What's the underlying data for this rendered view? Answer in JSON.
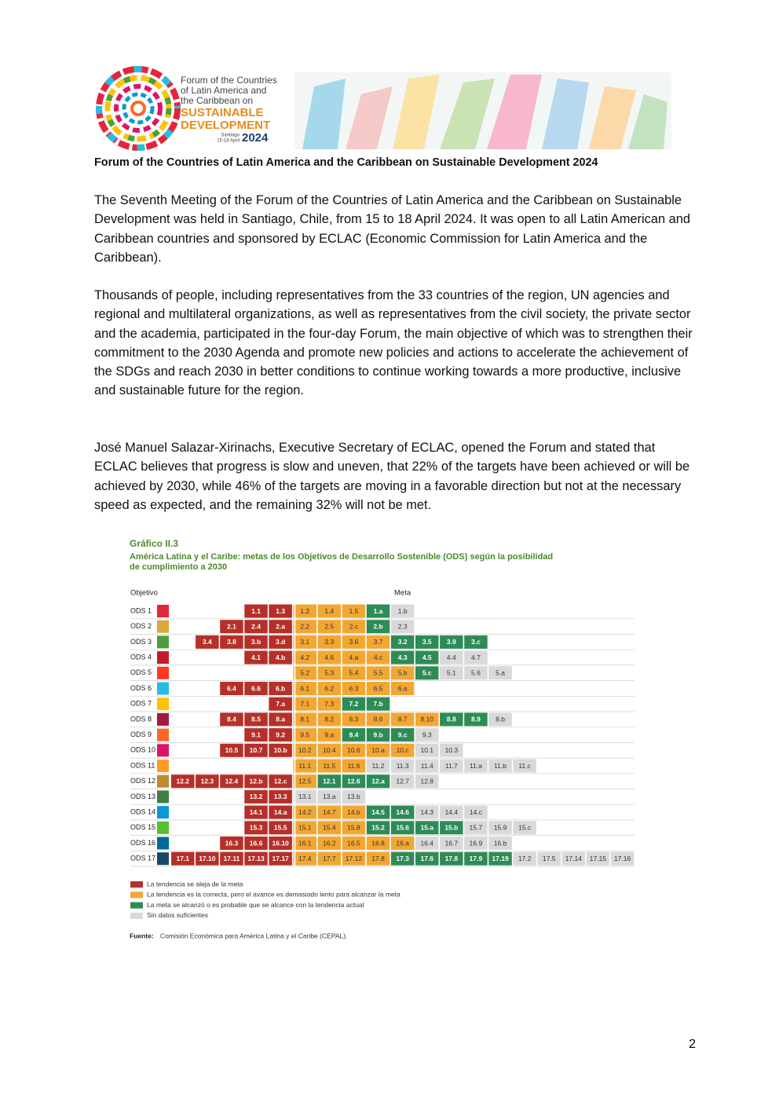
{
  "header": {
    "logo": {
      "line1": "Forum of the Countries",
      "line2": "of Latin America and",
      "line3": "the Caribbean on",
      "line4": "SUSTAINABLE",
      "line5": "DEVELOPMENT",
      "place": "Santiago",
      "dates": "15-18 April",
      "year": "2024"
    },
    "title": "Forum of the Countries of Latin America and the Caribbean on Sustainable Development 2024"
  },
  "paragraphs": [
    "The Seventh Meeting of the Forum of the Countries of Latin America and the Caribbean on Sustainable Development was held in Santiago, Chile, from 15 to 18 April 2024. It was open to all Latin American and Caribbean countries and sponsored by ECLAC (Economic Commission for Latin America and the Caribbean).",
    "Thousands of people, including representatives from the 33 countries of the region, UN agencies and regional and multilateral organizations, as well as representatives from the civil society, the private sector and the academia, participated in the four-day Forum, the main objective of which was to strengthen their commitment to the 2030 Agenda and promote new policies and actions to accelerate the achievement of the SDGs and reach 2030 in better conditions to continue working towards a more productive, inclusive and sustainable future for the region.",
    "José Manuel Salazar-Xirinachs, Executive Secretary of ECLAC, opened the Forum and stated that ECLAC believes that progress is slow and uneven, that 22% of the targets have been achieved or will be achieved by 2030, while 46% of the targets are moving in a favorable direction but not at the necessary speed as expected, and the remaining 32% will not be met."
  ],
  "figure": {
    "label": "Gráfico II.3",
    "title_line1": "América Latina y el Caribe: metas de los Objetivos de Desarrollo Sostenible (ODS) según la posibilidad",
    "title_line2": "de cumplimiento a 2030",
    "col_objective": "Objetivo",
    "col_target": "Meta",
    "legend": [
      {
        "label": "La tendencia se aleja de la meta",
        "color": "#b5302a"
      },
      {
        "label": "La tendencia es la correcta, pero el avance es demasiado lento para alcanzar la meta",
        "color": "#f2a733"
      },
      {
        "label": "La meta se alcanzó o es probable que se alcance con la tendencia actual",
        "color": "#2e8b57"
      },
      {
        "label": "Sin datos suficientes",
        "color": "#d9d9d9"
      }
    ],
    "rows": [
      {
        "label": "ODS 1",
        "color": "#e5243b",
        "targets": [
          [
            "1.1",
            "1.3"
          ],
          [
            "1.2",
            "1.4",
            "1.5"
          ],
          [
            "1.a"
          ],
          [
            "1.b"
          ]
        ]
      },
      {
        "label": "ODS 2",
        "color": "#dda63a",
        "targets": [
          [
            "2.1",
            "2.4",
            "2.a"
          ],
          [
            "2.2",
            "2.5",
            "2.c"
          ],
          [
            "2.b"
          ],
          [
            "2.3"
          ]
        ]
      },
      {
        "label": "ODS 3",
        "color": "#4c9f38",
        "targets": [
          [
            "3.4",
            "3.8",
            "3.b",
            "3.d"
          ],
          [
            "3.1",
            "3.3",
            "3.6",
            "3.7"
          ],
          [
            "3.2",
            "3.5",
            "3.9",
            "3.c"
          ],
          []
        ]
      },
      {
        "label": "ODS 4",
        "color": "#c5192d",
        "targets": [
          [
            "4.1",
            "4.b"
          ],
          [
            "4.2",
            "4.6",
            "4.a",
            "4.c"
          ],
          [
            "4.3",
            "4.5"
          ],
          [
            "4.4",
            "4.7"
          ]
        ]
      },
      {
        "label": "ODS 5",
        "color": "#ff3a21",
        "targets": [
          [],
          [
            "5.2",
            "5.3",
            "5.4",
            "5.5",
            "5.b"
          ],
          [
            "5.c"
          ],
          [
            "5.1",
            "5.6",
            "5.a"
          ]
        ]
      },
      {
        "label": "ODS 6",
        "color": "#26bde2",
        "targets": [
          [
            "6.4",
            "6.6",
            "6.b"
          ],
          [
            "6.1",
            "6.2",
            "6.3",
            "6.5",
            "6.a"
          ],
          [],
          []
        ]
      },
      {
        "label": "ODS 7",
        "color": "#fcc30b",
        "targets": [
          [
            "7.a"
          ],
          [
            "7.1",
            "7.3"
          ],
          [
            "7.2",
            "7.b"
          ],
          []
        ]
      },
      {
        "label": "ODS 8",
        "color": "#a21942",
        "targets": [
          [
            "8.4",
            "8.5",
            "8.a"
          ],
          [
            "8.1",
            "8.2",
            "8.3",
            "8.6",
            "8.7",
            "8.10"
          ],
          [
            "8.8",
            "8.9"
          ],
          [
            "8.b"
          ]
        ]
      },
      {
        "label": "ODS 9",
        "color": "#fd6925",
        "targets": [
          [
            "9.1",
            "9.2"
          ],
          [
            "9.5",
            "9.a"
          ],
          [
            "9.4",
            "9.b",
            "9.c"
          ],
          [
            "9.3"
          ]
        ]
      },
      {
        "label": "ODS 10",
        "color": "#dd1367",
        "targets": [
          [
            "10.5",
            "10.7",
            "10.b"
          ],
          [
            "10.2",
            "10.4",
            "10.6",
            "10.a",
            "10.c"
          ],
          [],
          [
            "10.1",
            "10.3"
          ]
        ]
      },
      {
        "label": "ODS 11",
        "color": "#fd9d24",
        "targets": [
          [],
          [
            "11.1",
            "11.5",
            "11.6"
          ],
          [],
          [
            "11.2",
            "11.3",
            "11.4",
            "11.7",
            "11.a",
            "11.b",
            "11.c"
          ]
        ]
      },
      {
        "label": "ODS 12",
        "color": "#bf8b2e",
        "targets": [
          [
            "12.2",
            "12.3",
            "12.4",
            "12.b",
            "12.c"
          ],
          [
            "12.5"
          ],
          [
            "12.1",
            "12.6",
            "12.a"
          ],
          [
            "12.7",
            "12.8"
          ]
        ]
      },
      {
        "label": "ODS 13",
        "color": "#3f7e44",
        "targets": [
          [
            "13.2",
            "13.3"
          ],
          [],
          [],
          [
            "13.1",
            "13.a",
            "13.b"
          ]
        ]
      },
      {
        "label": "ODS 14",
        "color": "#0a97d9",
        "targets": [
          [
            "14.1",
            "14.a"
          ],
          [
            "14.2",
            "14.7",
            "14.b"
          ],
          [
            "14.5",
            "14.6"
          ],
          [
            "14.3",
            "14.4",
            "14.c"
          ]
        ]
      },
      {
        "label": "ODS 15",
        "color": "#56c02b",
        "targets": [
          [
            "15.3",
            "15.5"
          ],
          [
            "15.1",
            "15.4",
            "15.8"
          ],
          [
            "15.2",
            "15.6",
            "15.a",
            "15.b"
          ],
          [
            "15.7",
            "15.9",
            "15.c"
          ]
        ]
      },
      {
        "label": "ODS 16",
        "color": "#00689d",
        "targets": [
          [
            "16.3",
            "16.6",
            "16.10"
          ],
          [
            "16.1",
            "16.2",
            "16.5",
            "16.8",
            "16.a"
          ],
          [],
          [
            "16.4",
            "16.7",
            "16.9",
            "16.b"
          ]
        ]
      },
      {
        "label": "ODS 17",
        "color": "#19486a",
        "targets": [
          [
            "17.1",
            "17.10",
            "17.11",
            "17.13",
            "17.17"
          ],
          [
            "17.4",
            "17.7",
            "17.12",
            "17.8"
          ],
          [
            "17.3",
            "17.6",
            "17.8",
            "17.9",
            "17.19"
          ],
          [
            "17.2",
            "17.5",
            "17.14",
            "17.15",
            "17.16"
          ]
        ]
      }
    ],
    "source_label": "Fuente:",
    "source": "Comisión Económica para América Latina y el Caribe (CEPAL)."
  },
  "page_number": "2"
}
